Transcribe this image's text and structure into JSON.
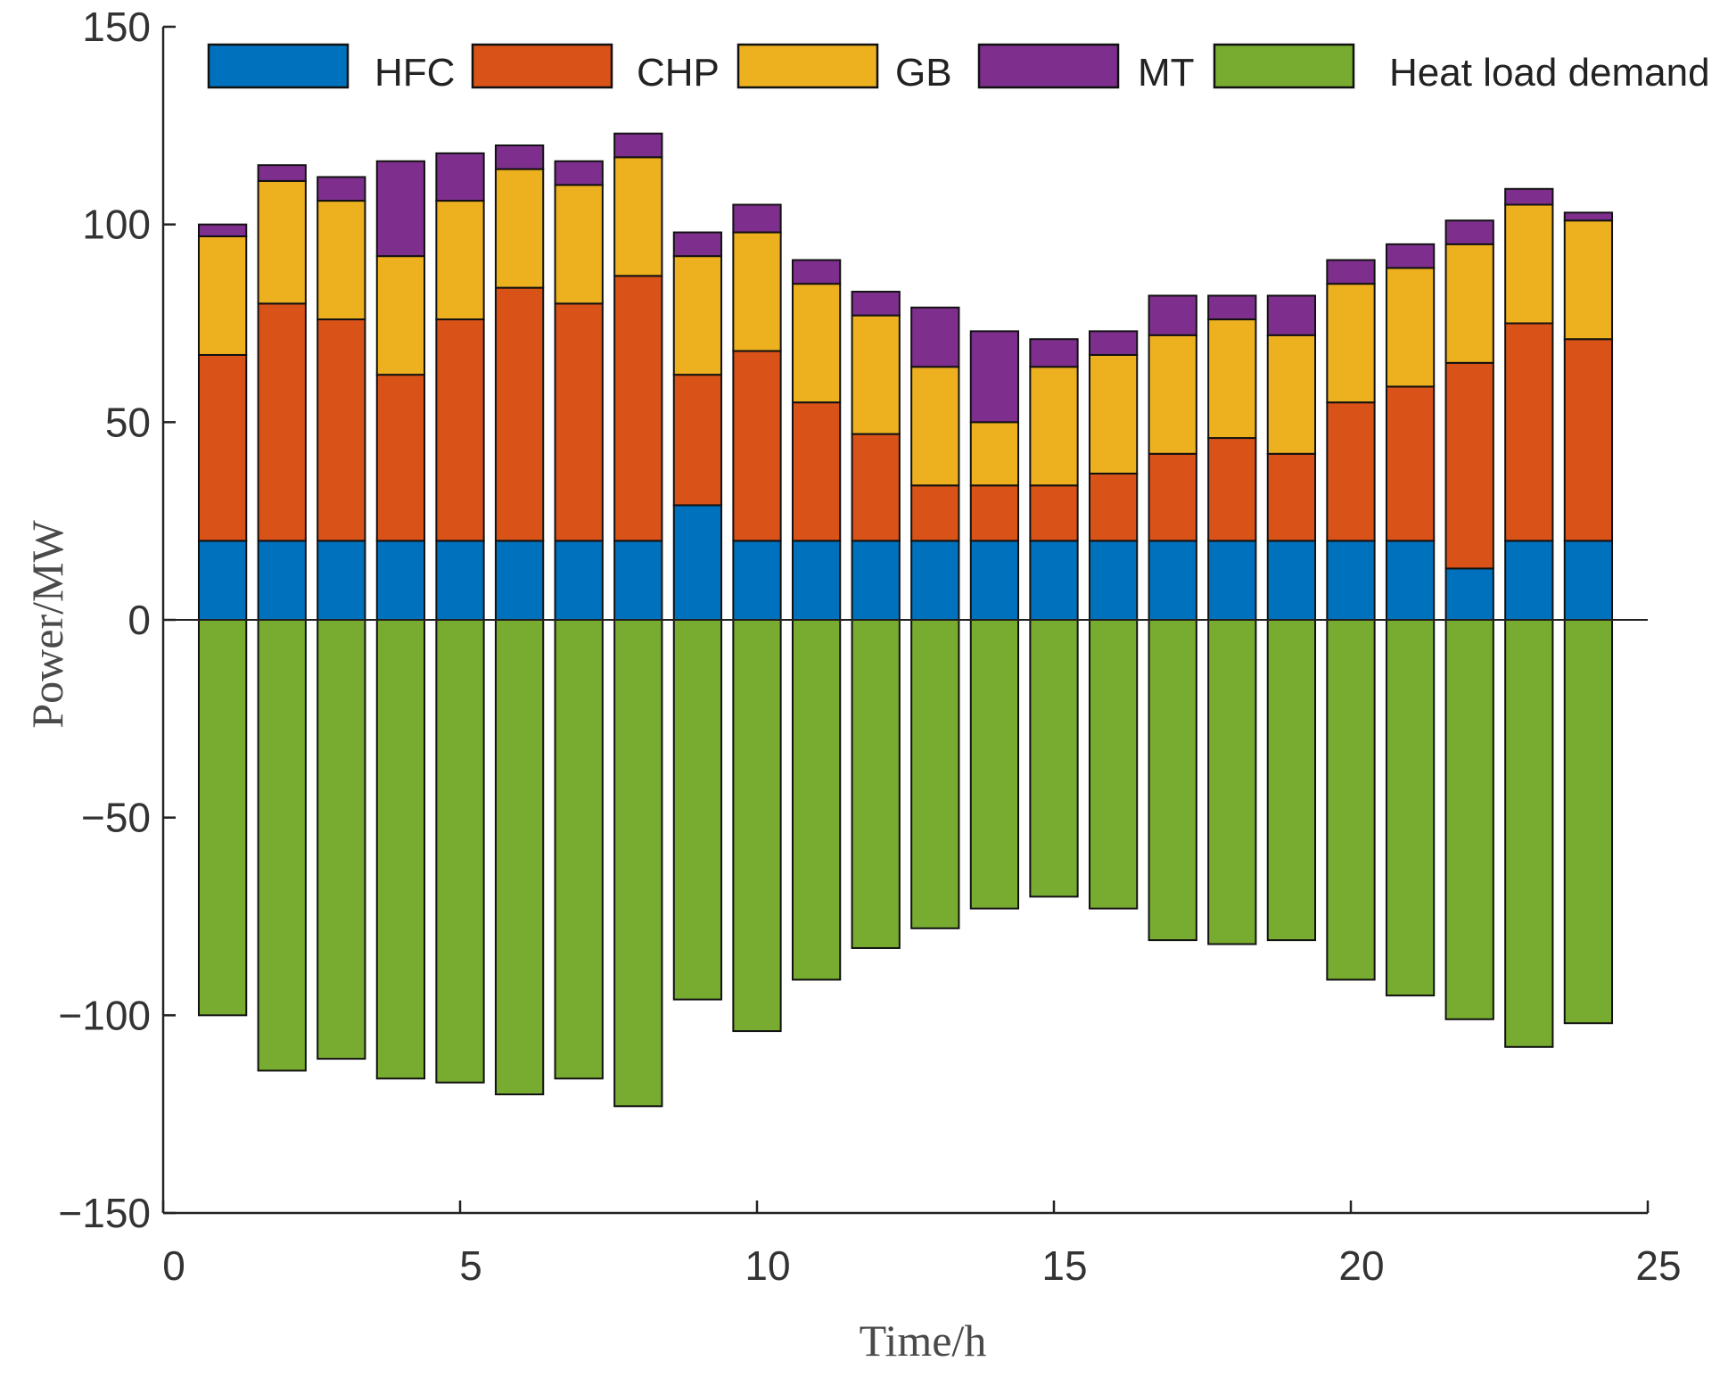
{
  "chart_data": {
    "type": "bar",
    "stacked": true,
    "title": "",
    "xlabel": "Time/h",
    "ylabel": "Power/MW",
    "xlim": [
      0,
      25
    ],
    "ylim": [
      -150,
      150
    ],
    "xticks": [
      0,
      5,
      10,
      15,
      20,
      25
    ],
    "yticks": [
      -150,
      -100,
      -50,
      0,
      50,
      100,
      150
    ],
    "ytick_labels": [
      "−150",
      "−100",
      "−50",
      "0",
      "50",
      "100",
      "150"
    ],
    "legend_position": "top",
    "x": [
      1,
      2,
      3,
      4,
      5,
      6,
      7,
      8,
      9,
      10,
      11,
      12,
      13,
      14,
      15,
      16,
      17,
      18,
      19,
      20,
      21,
      22,
      23,
      24
    ],
    "series": [
      {
        "name": "HFC",
        "color": "#0072BD",
        "values": [
          20,
          20,
          20,
          20,
          20,
          20,
          20,
          20,
          29,
          20,
          20,
          20,
          20,
          20,
          20,
          20,
          20,
          20,
          20,
          20,
          20,
          13,
          20,
          20
        ]
      },
      {
        "name": "CHP",
        "color": "#D95319",
        "values": [
          47,
          60,
          56,
          42,
          56,
          64,
          60,
          67,
          33,
          48,
          35,
          27,
          14,
          14,
          14,
          17,
          22,
          26,
          22,
          35,
          39,
          52,
          55,
          51
        ]
      },
      {
        "name": "GB",
        "color": "#EDB120",
        "values": [
          30,
          31,
          30,
          30,
          30,
          30,
          30,
          30,
          30,
          30,
          30,
          30,
          30,
          16,
          30,
          30,
          30,
          30,
          30,
          30,
          30,
          30,
          30,
          30
        ]
      },
      {
        "name": "MT",
        "color": "#7E2F8E",
        "values": [
          3,
          4,
          6,
          24,
          12,
          6,
          6,
          6,
          6,
          7,
          6,
          6,
          15,
          23,
          7,
          6,
          10,
          6,
          10,
          6,
          6,
          6,
          4,
          2
        ]
      },
      {
        "name": "Heat load demand",
        "color": "#77AC30",
        "values": [
          -100,
          -114,
          -111,
          -116,
          -117,
          -120,
          -116,
          -123,
          -96,
          -104,
          -91,
          -83,
          -78,
          -73,
          -70,
          -73,
          -81,
          -82,
          -81,
          -91,
          -95,
          -101,
          -108,
          -102
        ]
      }
    ]
  }
}
